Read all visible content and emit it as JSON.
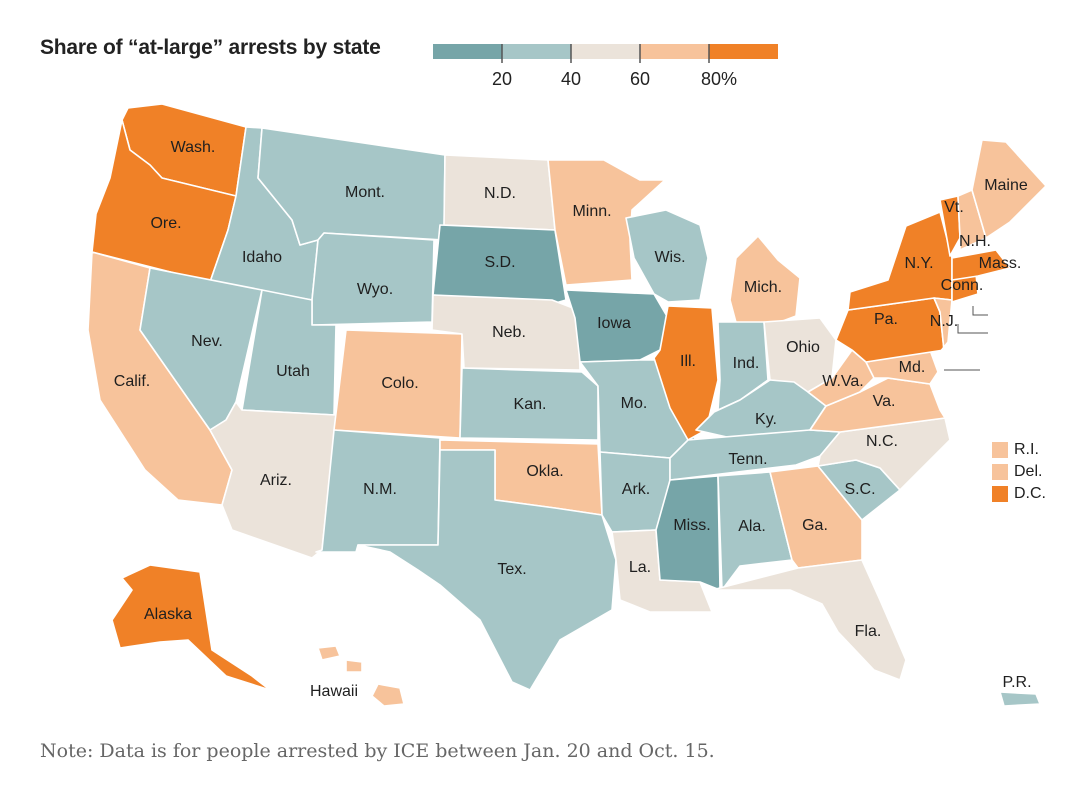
{
  "title": "Share of “at-large” arrests by state",
  "note": "Note: Data is for people arrested by ICE between Jan. 20 and Oct. 15.",
  "colors": {
    "bin1": "#76a5a8",
    "bin2": "#a6c6c7",
    "bin3": "#ebe3da",
    "bin4": "#f7c39b",
    "bin5": "#f08127"
  },
  "legend": {
    "scale": [
      "20",
      "40",
      "60",
      "80%"
    ],
    "bins": [
      "bin1",
      "bin2",
      "bin3",
      "bin4",
      "bin5"
    ]
  },
  "states": [
    {
      "label": "Wash.",
      "bin": "bin5"
    },
    {
      "label": "Ore.",
      "bin": "bin5"
    },
    {
      "label": "Calif.",
      "bin": "bin4"
    },
    {
      "label": "Idaho",
      "bin": "bin2"
    },
    {
      "label": "Nev.",
      "bin": "bin2"
    },
    {
      "label": "Mont.",
      "bin": "bin2"
    },
    {
      "label": "Wyo.",
      "bin": "bin2"
    },
    {
      "label": "Utah",
      "bin": "bin2"
    },
    {
      "label": "Ariz.",
      "bin": "bin3"
    },
    {
      "label": "Colo.",
      "bin": "bin4"
    },
    {
      "label": "N.M.",
      "bin": "bin2"
    },
    {
      "label": "N.D.",
      "bin": "bin3"
    },
    {
      "label": "S.D.",
      "bin": "bin1"
    },
    {
      "label": "Neb.",
      "bin": "bin3"
    },
    {
      "label": "Kan.",
      "bin": "bin2"
    },
    {
      "label": "Okla.",
      "bin": "bin4"
    },
    {
      "label": "Tex.",
      "bin": "bin2"
    },
    {
      "label": "Minn.",
      "bin": "bin4"
    },
    {
      "label": "Iowa",
      "bin": "bin1"
    },
    {
      "label": "Mo.",
      "bin": "bin2"
    },
    {
      "label": "Ark.",
      "bin": "bin2"
    },
    {
      "label": "La.",
      "bin": "bin3"
    },
    {
      "label": "Wis.",
      "bin": "bin2"
    },
    {
      "label": "Ill.",
      "bin": "bin5"
    },
    {
      "label": "Mich.",
      "bin": "bin4"
    },
    {
      "label": "Ind.",
      "bin": "bin2"
    },
    {
      "label": "Ohio",
      "bin": "bin3"
    },
    {
      "label": "Ky.",
      "bin": "bin2"
    },
    {
      "label": "Tenn.",
      "bin": "bin2"
    },
    {
      "label": "Miss.",
      "bin": "bin1"
    },
    {
      "label": "Ala.",
      "bin": "bin2"
    },
    {
      "label": "Ga.",
      "bin": "bin4"
    },
    {
      "label": "Fla.",
      "bin": "bin3"
    },
    {
      "label": "S.C.",
      "bin": "bin2"
    },
    {
      "label": "N.C.",
      "bin": "bin3"
    },
    {
      "label": "Va.",
      "bin": "bin4"
    },
    {
      "label": "W.Va.",
      "bin": "bin4"
    },
    {
      "label": "Md.",
      "bin": "bin4"
    },
    {
      "label": "Pa.",
      "bin": "bin5"
    },
    {
      "label": "N.Y.",
      "bin": "bin5"
    },
    {
      "label": "N.J.",
      "bin": "bin4"
    },
    {
      "label": "Conn.",
      "bin": "bin5"
    },
    {
      "label": "Mass.",
      "bin": "bin5"
    },
    {
      "label": "Vt.",
      "bin": "bin5"
    },
    {
      "label": "N.H.",
      "bin": "bin4"
    },
    {
      "label": "Maine",
      "bin": "bin4"
    },
    {
      "label": "Alaska",
      "bin": "bin5"
    },
    {
      "label": "Hawaii",
      "bin": "bin4"
    },
    {
      "label": "P.R.",
      "bin": "bin2"
    }
  ],
  "small_states": [
    {
      "label": "R.I.",
      "bin": "bin4"
    },
    {
      "label": "Del.",
      "bin": "bin4"
    },
    {
      "label": "D.C.",
      "bin": "bin5"
    }
  ]
}
